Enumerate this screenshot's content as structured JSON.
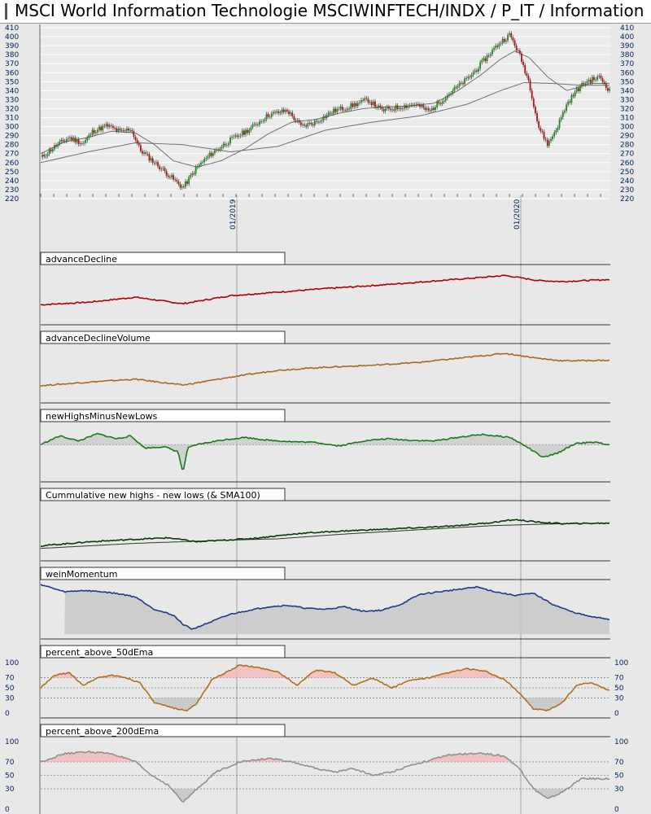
{
  "title": "MSCI World Information Technologie MSCIWINFTECH/INDX / P_IT / Information",
  "chart_data": {
    "type": "line",
    "date_labels": [
      "01/2019",
      "01/2020"
    ],
    "price": {
      "ylim": [
        220,
        410
      ],
      "ticks": [
        410,
        400,
        390,
        380,
        370,
        360,
        350,
        340,
        330,
        320,
        310,
        300,
        290,
        280,
        270,
        260,
        250,
        240,
        230,
        220
      ],
      "series_points": [
        [
          0,
          265
        ],
        [
          3,
          278
        ],
        [
          6,
          288
        ],
        [
          9,
          281
        ],
        [
          11,
          295
        ],
        [
          14,
          301
        ],
        [
          17,
          294
        ],
        [
          19,
          298
        ],
        [
          21,
          274
        ],
        [
          26,
          251
        ],
        [
          30,
          232
        ],
        [
          33,
          255
        ],
        [
          36,
          270
        ],
        [
          40,
          285
        ],
        [
          44,
          297
        ],
        [
          48,
          313
        ],
        [
          52,
          318
        ],
        [
          55,
          300
        ],
        [
          58,
          305
        ],
        [
          62,
          318
        ],
        [
          65,
          322
        ],
        [
          69,
          330
        ],
        [
          72,
          318
        ],
        [
          76,
          322
        ],
        [
          79,
          325
        ],
        [
          82,
          317
        ],
        [
          86,
          336
        ],
        [
          90,
          353
        ],
        [
          92,
          364
        ],
        [
          95,
          383
        ],
        [
          97,
          394
        ],
        [
          99,
          402
        ],
        [
          101,
          380
        ],
        [
          103,
          350
        ],
        [
          105,
          300
        ],
        [
          107,
          280
        ],
        [
          109,
          300
        ],
        [
          111,
          325
        ],
        [
          113,
          340
        ],
        [
          115,
          350
        ],
        [
          118,
          355
        ],
        [
          120,
          340
        ]
      ],
      "sma_fast_points": [
        [
          0,
          270
        ],
        [
          5,
          283
        ],
        [
          10,
          288
        ],
        [
          15,
          295
        ],
        [
          20,
          293
        ],
        [
          24,
          280
        ],
        [
          28,
          262
        ],
        [
          33,
          255
        ],
        [
          38,
          262
        ],
        [
          43,
          275
        ],
        [
          48,
          292
        ],
        [
          53,
          305
        ],
        [
          58,
          308
        ],
        [
          63,
          315
        ],
        [
          68,
          320
        ],
        [
          73,
          322
        ],
        [
          78,
          323
        ],
        [
          83,
          326
        ],
        [
          88,
          340
        ],
        [
          93,
          358
        ],
        [
          97,
          375
        ],
        [
          100,
          384
        ],
        [
          103,
          377
        ],
        [
          107,
          355
        ],
        [
          111,
          340
        ],
        [
          116,
          348
        ],
        [
          120,
          348
        ]
      ],
      "sma_slow_points": [
        [
          0,
          260
        ],
        [
          10,
          272
        ],
        [
          20,
          282
        ],
        [
          30,
          280
        ],
        [
          40,
          272
        ],
        [
          50,
          278
        ],
        [
          60,
          296
        ],
        [
          70,
          305
        ],
        [
          80,
          312
        ],
        [
          90,
          325
        ],
        [
          97,
          340
        ],
        [
          102,
          349
        ],
        [
          108,
          348
        ],
        [
          114,
          346
        ],
        [
          120,
          346
        ]
      ]
    },
    "panels": [
      {
        "label": "advanceDecline",
        "color": "#b00000",
        "ylim": [
          0,
          100
        ],
        "points": [
          [
            0,
            30
          ],
          [
            10,
            35
          ],
          [
            20,
            45
          ],
          [
            30,
            32
          ],
          [
            40,
            48
          ],
          [
            50,
            55
          ],
          [
            60,
            62
          ],
          [
            70,
            68
          ],
          [
            80,
            75
          ],
          [
            90,
            82
          ],
          [
            98,
            88
          ],
          [
            105,
            78
          ],
          [
            110,
            76
          ],
          [
            120,
            80
          ]
        ]
      },
      {
        "label": "advanceDeclineVolume",
        "color": "#a86a20",
        "ylim": [
          0,
          100
        ],
        "points": [
          [
            0,
            25
          ],
          [
            10,
            32
          ],
          [
            20,
            38
          ],
          [
            30,
            26
          ],
          [
            40,
            42
          ],
          [
            50,
            56
          ],
          [
            60,
            62
          ],
          [
            70,
            66
          ],
          [
            80,
            72
          ],
          [
            90,
            82
          ],
          [
            98,
            90
          ],
          [
            105,
            80
          ],
          [
            110,
            75
          ],
          [
            120,
            76
          ]
        ]
      },
      {
        "label": "newHighsMinusNewLows",
        "color": "#1a7a1a",
        "ylim": [
          -45,
          25
        ],
        "baseline": 0,
        "points": [
          [
            0,
            0
          ],
          [
            4,
            12
          ],
          [
            8,
            5
          ],
          [
            12,
            15
          ],
          [
            16,
            8
          ],
          [
            19,
            12
          ],
          [
            22,
            -5
          ],
          [
            26,
            -3
          ],
          [
            29,
            -10
          ],
          [
            30,
            -40
          ],
          [
            31,
            -5
          ],
          [
            33,
            0
          ],
          [
            38,
            6
          ],
          [
            43,
            10
          ],
          [
            48,
            6
          ],
          [
            53,
            4
          ],
          [
            58,
            3
          ],
          [
            63,
            -2
          ],
          [
            68,
            5
          ],
          [
            73,
            8
          ],
          [
            78,
            6
          ],
          [
            83,
            5
          ],
          [
            88,
            10
          ],
          [
            93,
            14
          ],
          [
            96,
            12
          ],
          [
            99,
            10
          ],
          [
            103,
            -5
          ],
          [
            106,
            -18
          ],
          [
            109,
            -12
          ],
          [
            113,
            2
          ],
          [
            117,
            3
          ],
          [
            120,
            0
          ]
        ]
      },
      {
        "label": "Cummulative new highs - new lows (& SMA100)",
        "color": "#0a3a0a",
        "ylim": [
          0,
          100
        ],
        "points": [
          [
            0,
            20
          ],
          [
            10,
            28
          ],
          [
            20,
            33
          ],
          [
            27,
            36
          ],
          [
            33,
            28
          ],
          [
            45,
            35
          ],
          [
            55,
            45
          ],
          [
            65,
            50
          ],
          [
            75,
            54
          ],
          [
            85,
            58
          ],
          [
            95,
            66
          ],
          [
            100,
            72
          ],
          [
            105,
            67
          ],
          [
            110,
            64
          ],
          [
            120,
            65
          ]
        ],
        "sma_points": [
          [
            0,
            15
          ],
          [
            20,
            25
          ],
          [
            35,
            30
          ],
          [
            50,
            34
          ],
          [
            65,
            44
          ],
          [
            80,
            52
          ],
          [
            95,
            60
          ],
          [
            110,
            64
          ],
          [
            120,
            65
          ]
        ]
      },
      {
        "label": "weinMomentum",
        "color": "#1e3a8a",
        "ylim": [
          0,
          100
        ],
        "fill_from_index": 5,
        "points": [
          [
            0,
            100
          ],
          [
            5,
            85
          ],
          [
            9,
            88
          ],
          [
            12,
            86
          ],
          [
            16,
            82
          ],
          [
            20,
            75
          ],
          [
            24,
            50
          ],
          [
            28,
            38
          ],
          [
            30,
            20
          ],
          [
            32,
            10
          ],
          [
            36,
            25
          ],
          [
            40,
            40
          ],
          [
            44,
            48
          ],
          [
            48,
            55
          ],
          [
            52,
            58
          ],
          [
            56,
            52
          ],
          [
            60,
            50
          ],
          [
            64,
            55
          ],
          [
            68,
            46
          ],
          [
            72,
            48
          ],
          [
            76,
            60
          ],
          [
            80,
            80
          ],
          [
            84,
            85
          ],
          [
            88,
            90
          ],
          [
            92,
            95
          ],
          [
            96,
            85
          ],
          [
            100,
            78
          ],
          [
            104,
            82
          ],
          [
            108,
            60
          ],
          [
            112,
            45
          ],
          [
            116,
            35
          ],
          [
            120,
            30
          ]
        ]
      },
      {
        "label": "percent_above_50dEma",
        "color": "#b0701a",
        "ylim": [
          0,
          100
        ],
        "ticks": [
          100,
          70,
          50,
          30,
          0
        ],
        "ref_lines": [
          70,
          50,
          30
        ],
        "points": [
          [
            0,
            50
          ],
          [
            3,
            75
          ],
          [
            6,
            80
          ],
          [
            9,
            55
          ],
          [
            12,
            70
          ],
          [
            15,
            75
          ],
          [
            18,
            70
          ],
          [
            21,
            60
          ],
          [
            24,
            20
          ],
          [
            28,
            10
          ],
          [
            31,
            5
          ],
          [
            33,
            20
          ],
          [
            36,
            65
          ],
          [
            39,
            80
          ],
          [
            42,
            95
          ],
          [
            46,
            90
          ],
          [
            50,
            82
          ],
          [
            54,
            55
          ],
          [
            58,
            85
          ],
          [
            62,
            80
          ],
          [
            66,
            55
          ],
          [
            70,
            70
          ],
          [
            74,
            50
          ],
          [
            78,
            65
          ],
          [
            82,
            70
          ],
          [
            86,
            80
          ],
          [
            90,
            88
          ],
          [
            94,
            82
          ],
          [
            98,
            65
          ],
          [
            101,
            40
          ],
          [
            104,
            8
          ],
          [
            107,
            5
          ],
          [
            110,
            20
          ],
          [
            113,
            55
          ],
          [
            116,
            60
          ],
          [
            120,
            45
          ]
        ]
      },
      {
        "label": "percent_above_200dEma",
        "color": "#909090",
        "ylim": [
          0,
          100
        ],
        "ticks": [
          100,
          70,
          50,
          30,
          0
        ],
        "ref_lines": [
          70,
          50,
          30
        ],
        "points": [
          [
            0,
            70
          ],
          [
            5,
            82
          ],
          [
            10,
            85
          ],
          [
            15,
            82
          ],
          [
            20,
            70
          ],
          [
            23,
            52
          ],
          [
            27,
            35
          ],
          [
            30,
            10
          ],
          [
            33,
            30
          ],
          [
            37,
            55
          ],
          [
            42,
            70
          ],
          [
            48,
            75
          ],
          [
            53,
            70
          ],
          [
            58,
            60
          ],
          [
            62,
            55
          ],
          [
            66,
            60
          ],
          [
            70,
            50
          ],
          [
            74,
            55
          ],
          [
            78,
            65
          ],
          [
            82,
            72
          ],
          [
            86,
            80
          ],
          [
            90,
            82
          ],
          [
            94,
            82
          ],
          [
            98,
            78
          ],
          [
            101,
            60
          ],
          [
            104,
            30
          ],
          [
            107,
            15
          ],
          [
            110,
            25
          ],
          [
            114,
            45
          ],
          [
            120,
            45
          ]
        ]
      }
    ]
  }
}
